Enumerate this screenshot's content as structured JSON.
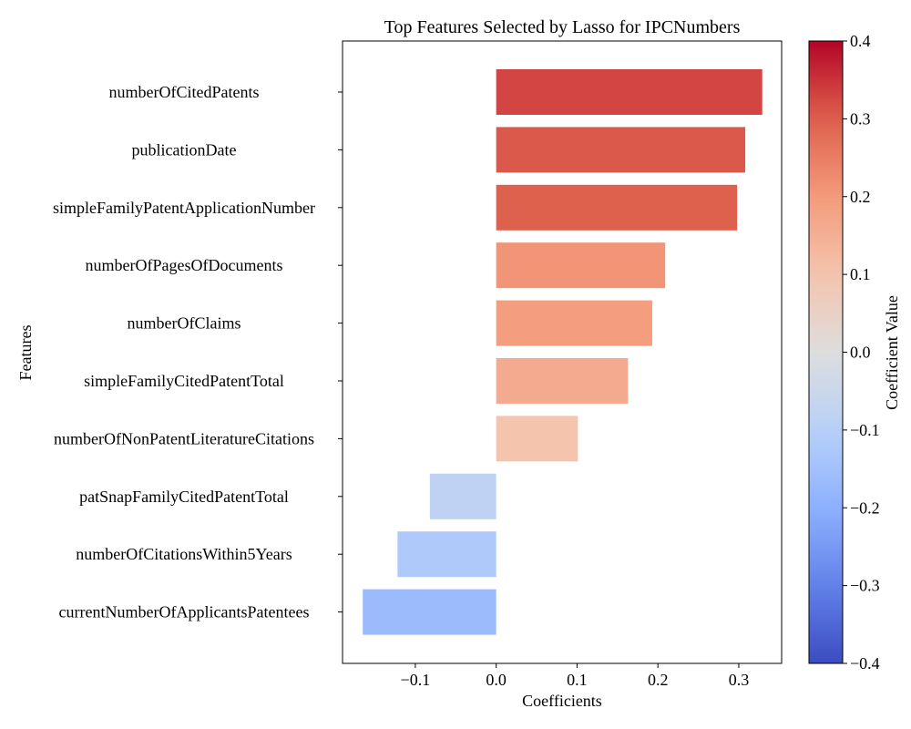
{
  "chart_data": {
    "type": "bar",
    "orientation": "horizontal",
    "title": "Top Features Selected by Lasso for IPCNumbers",
    "xlabel": "Coefficients",
    "ylabel": "Features",
    "categories": [
      "numberOfCitedPatents",
      "publicationDate",
      "simpleFamilyPatentApplicationNumber",
      "numberOfPagesOfDocuments",
      "numberOfClaims",
      "simpleFamilyCitedPatentTotal",
      "numberOfNonPatentLiteratureCitations",
      "patSnapFamilyCitedPatentTotal",
      "numberOfCitationsWithin5Years",
      "currentNumberOfApplicantsPatentees"
    ],
    "values": [
      0.329,
      0.308,
      0.298,
      0.209,
      0.193,
      0.163,
      0.101,
      -0.082,
      -0.122,
      -0.165
    ],
    "xlim": [
      -0.19,
      0.353
    ],
    "xticks": [
      "−0.1",
      "0.0",
      "0.1",
      "0.2",
      "0.3"
    ],
    "xtick_values": [
      -0.1,
      0.0,
      0.1,
      0.2,
      0.3
    ],
    "grid": false,
    "colormap": "coolwarm",
    "colorbar": {
      "label": "Coefficient Value",
      "range": [
        -0.4,
        0.4
      ],
      "ticks": [
        "−0.4",
        "−0.3",
        "−0.2",
        "−0.1",
        "0.0",
        "0.1",
        "0.2",
        "0.3",
        "0.4"
      ],
      "tick_values": [
        -0.4,
        -0.3,
        -0.2,
        -0.1,
        0.0,
        0.1,
        0.2,
        0.3,
        0.4
      ]
    }
  }
}
